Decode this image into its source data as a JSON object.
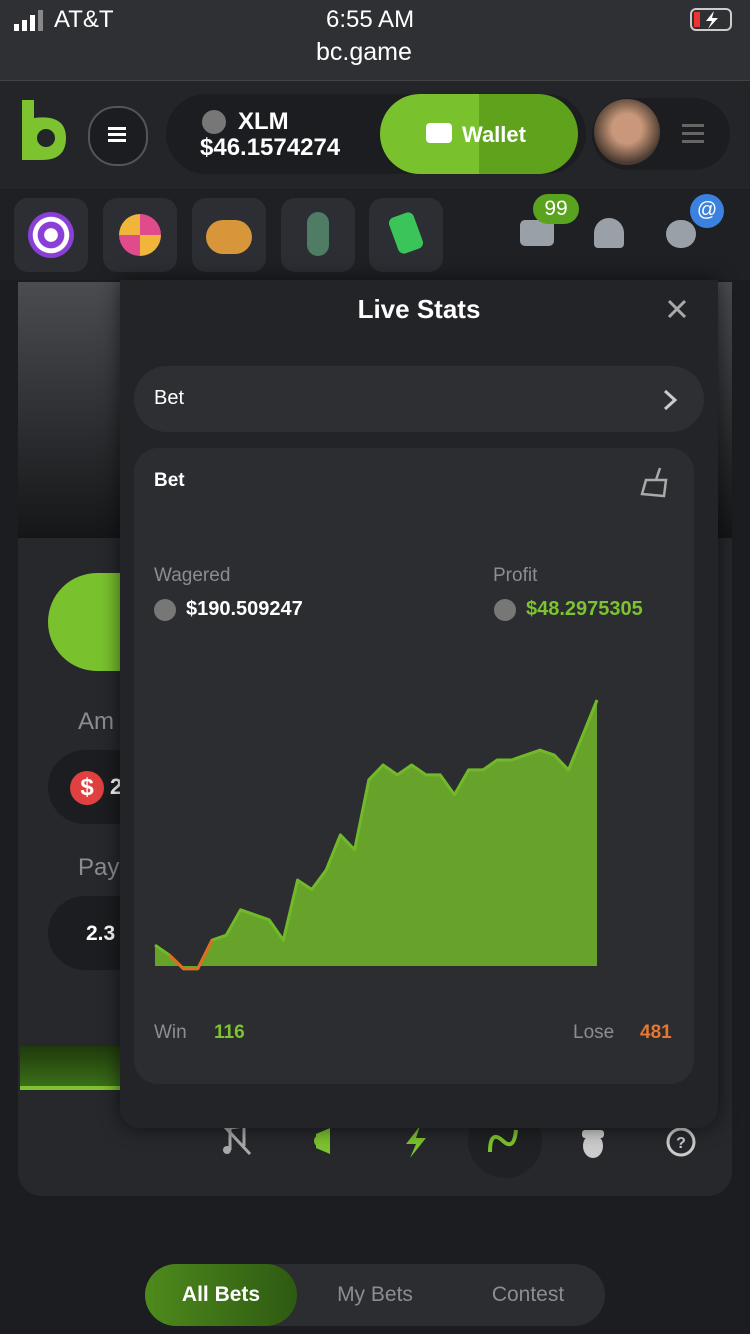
{
  "status_bar": {
    "carrier": "AT&T",
    "time": "6:55 AM",
    "url": "bc.game"
  },
  "header": {
    "currency": "XLM",
    "balance": "$46.1574274",
    "wallet_button": "Wallet"
  },
  "notifications": {
    "mail_badge": "99",
    "chat_badge": "@"
  },
  "game": {
    "amount_label": "Am",
    "amount_symbol": "$",
    "amount_value": "2",
    "payout_label": "Pay",
    "payout_value": "2.3"
  },
  "live_stats": {
    "title": "Live Stats",
    "selector": "Bet",
    "card_title": "Bet",
    "wagered_label": "Wagered",
    "wagered_value": "$190.509247",
    "profit_label": "Profit",
    "profit_value": "$48.2975305",
    "win_label": "Win",
    "win_value": "116",
    "lose_label": "Lose",
    "lose_value": "481",
    "chart": {
      "type": "area",
      "color": "#72b92a",
      "negative_color": "#e36b1f",
      "values": [
        3.8,
        2.0,
        -0.5,
        -0.5,
        4.7,
        5.6,
        10.2,
        9.3,
        8.4,
        4.7,
        15.6,
        13.9,
        17.4,
        23.8,
        21.1,
        33.8,
        36.5,
        34.7,
        36.5,
        34.7,
        34.7,
        31.1,
        35.6,
        35.6,
        37.4,
        37.4,
        38.3,
        39.2,
        38.3,
        35.6,
        41.9,
        48.2975305
      ]
    }
  },
  "bet_tabs": {
    "all": "All Bets",
    "mine": "My Bets",
    "contest": "Contest"
  }
}
